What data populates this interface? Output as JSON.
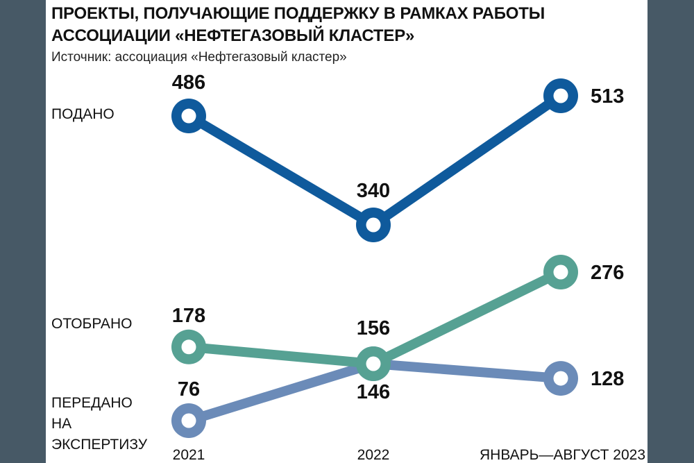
{
  "header": {
    "title_line1": "ПРОЕКТЫ, ПОЛУЧАЮЩИЕ ПОДДЕРЖКУ В РАМКАХ РАБОТЫ",
    "title_line2": "АССОЦИАЦИИ «НЕФТЕГАЗОВЫЙ КЛАСТЕР»",
    "source": "Источник: ассоциация «Нефтегазовый кластер»"
  },
  "chart_data": {
    "type": "line",
    "title": "ПРОЕКТЫ, ПОЛУЧАЮЩИЕ ПОДДЕРЖКУ В РАМКАХ РАБОТЫ АССОЦИАЦИИ «НЕФТЕГАЗОВЫЙ КЛАСТЕР»",
    "categories": [
      "2021",
      "2022",
      "ЯНВАРЬ—АВГУСТ 2023"
    ],
    "grid": false,
    "series": [
      {
        "name": "ПОДАНО",
        "values": [
          486,
          340,
          513
        ],
        "color": "#0f5a9c"
      },
      {
        "name": "ОТОБРАНО",
        "values": [
          178,
          156,
          276
        ],
        "color": "#56a193"
      },
      {
        "name": "ПЕРЕДАНО\nНА\nЭКСПЕРТИЗУ",
        "values": [
          76,
          146,
          128
        ],
        "color": "#6b8bb8"
      }
    ]
  }
}
